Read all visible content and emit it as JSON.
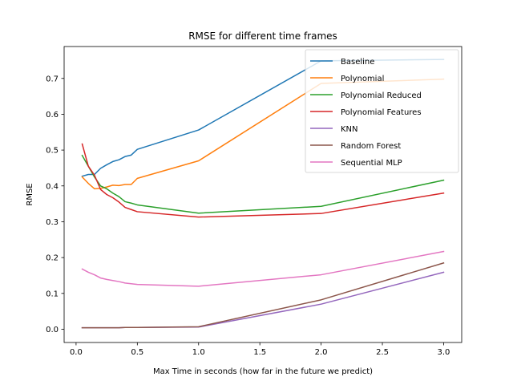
{
  "chart_data": {
    "type": "line",
    "title": "RMSE for different time frames",
    "xlabel": "Max Time in seconds (how far in the future we predict)",
    "ylabel": "RMSE",
    "xlim": [
      -0.0975,
      3.1475
    ],
    "ylim": [
      -0.037,
      0.789
    ],
    "xticks": [
      0.0,
      0.5,
      1.0,
      1.5,
      2.0,
      2.5,
      3.0
    ],
    "xtick_labels": [
      "0.0",
      "0.5",
      "1.0",
      "1.5",
      "2.0",
      "2.5",
      "3.0"
    ],
    "yticks": [
      0.0,
      0.1,
      0.2,
      0.3,
      0.4,
      0.5,
      0.6,
      0.7
    ],
    "ytick_labels": [
      "0.0",
      "0.1",
      "0.2",
      "0.3",
      "0.4",
      "0.5",
      "0.6",
      "0.7"
    ],
    "grid": false,
    "legend_position": "upper right",
    "series": [
      {
        "name": "Baseline",
        "color": "#1f77b4",
        "x": [
          0.05,
          0.1,
          0.15,
          0.2,
          0.25,
          0.3,
          0.35,
          0.4,
          0.45,
          0.5,
          1.0,
          2.0,
          3.0
        ],
        "y": [
          0.427,
          0.432,
          0.432,
          0.449,
          0.459,
          0.468,
          0.473,
          0.482,
          0.486,
          0.502,
          0.556,
          0.749,
          0.753
        ]
      },
      {
        "name": "Polynomial",
        "color": "#ff7f0e",
        "x": [
          0.05,
          0.1,
          0.15,
          0.2,
          0.25,
          0.3,
          0.35,
          0.4,
          0.45,
          0.5,
          1.0,
          2.0,
          3.0
        ],
        "y": [
          0.425,
          0.407,
          0.392,
          0.393,
          0.397,
          0.402,
          0.401,
          0.404,
          0.404,
          0.421,
          0.47,
          0.686,
          0.698
        ]
      },
      {
        "name": "Polynomial Reduced",
        "color": "#2ca02c",
        "x": [
          0.05,
          0.1,
          0.15,
          0.2,
          0.25,
          0.3,
          0.35,
          0.4,
          0.45,
          0.5,
          1.0,
          2.0,
          3.0
        ],
        "y": [
          0.485,
          0.455,
          0.425,
          0.4,
          0.392,
          0.38,
          0.37,
          0.356,
          0.352,
          0.347,
          0.324,
          0.343,
          0.416
        ]
      },
      {
        "name": "Polynomial Features",
        "color": "#d62728",
        "x": [
          0.05,
          0.1,
          0.15,
          0.2,
          0.25,
          0.3,
          0.35,
          0.4,
          0.45,
          0.5,
          1.0,
          2.0,
          3.0
        ],
        "y": [
          0.517,
          0.455,
          0.43,
          0.39,
          0.376,
          0.367,
          0.355,
          0.34,
          0.334,
          0.328,
          0.313,
          0.323,
          0.38
        ]
      },
      {
        "name": "KNN",
        "color": "#9467bd",
        "x": [
          0.05,
          0.1,
          0.15,
          0.2,
          0.25,
          0.3,
          0.35,
          0.4,
          0.45,
          0.5,
          1.0,
          2.0,
          3.0
        ],
        "y": [
          0.004,
          0.004,
          0.004,
          0.004,
          0.004,
          0.004,
          0.004,
          0.005,
          0.005,
          0.005,
          0.006,
          0.07,
          0.159
        ]
      },
      {
        "name": "Random Forest",
        "color": "#8c564b",
        "x": [
          0.05,
          0.1,
          0.15,
          0.2,
          0.25,
          0.3,
          0.35,
          0.4,
          0.45,
          0.5,
          1.0,
          2.0,
          3.0
        ],
        "y": [
          0.004,
          0.004,
          0.004,
          0.004,
          0.004,
          0.004,
          0.004,
          0.005,
          0.005,
          0.005,
          0.007,
          0.082,
          0.185
        ]
      },
      {
        "name": "Sequential MLP",
        "color": "#e377c2",
        "x": [
          0.05,
          0.1,
          0.15,
          0.2,
          0.25,
          0.3,
          0.35,
          0.4,
          0.45,
          0.5,
          1.0,
          2.0,
          3.0
        ],
        "y": [
          0.168,
          0.159,
          0.152,
          0.143,
          0.139,
          0.136,
          0.133,
          0.129,
          0.127,
          0.125,
          0.12,
          0.152,
          0.217
        ]
      }
    ]
  }
}
